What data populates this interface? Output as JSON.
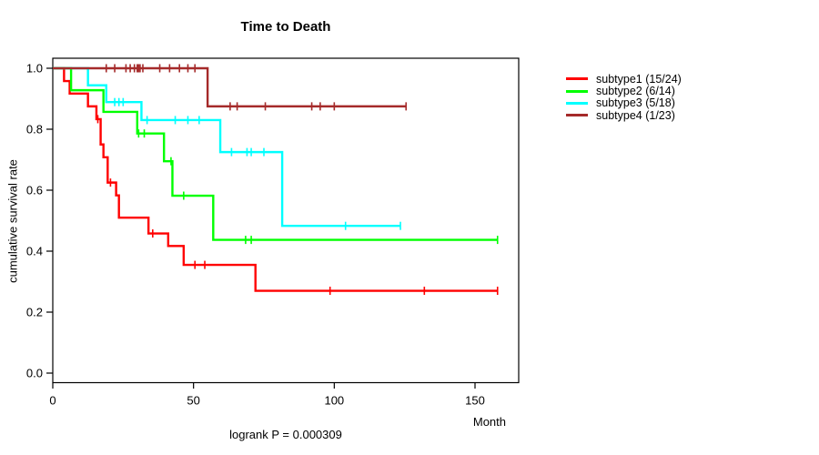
{
  "title": "Time to Death",
  "caption": "logrank P = 0.000309",
  "chart_data": {
    "type": "line",
    "subtype": "kaplan-meier-step-curves",
    "title": "Time to Death",
    "xlabel": "Month",
    "ylabel": "cumulative survival rate",
    "xlim": [
      0,
      165
    ],
    "ylim": [
      0.0,
      1.0
    ],
    "x_ticks": [
      0,
      50,
      100,
      150
    ],
    "y_ticks": [
      0.0,
      0.2,
      0.4,
      0.6,
      0.8,
      1.0
    ],
    "grid": false,
    "legend_position": "right",
    "caption": "logrank P = 0.000309",
    "series": [
      {
        "name": "subtype1",
        "label": "subtype1 (15/24)",
        "color": "#FF0000",
        "steps": [
          [
            0,
            1.0
          ],
          [
            4,
            0.958
          ],
          [
            6,
            0.917
          ],
          [
            12.5,
            0.875
          ],
          [
            15.5,
            0.833
          ],
          [
            17,
            0.75
          ],
          [
            18,
            0.708
          ],
          [
            19.5,
            0.625
          ],
          [
            22.5,
            0.583
          ],
          [
            23.5,
            0.51
          ],
          [
            34,
            0.458
          ],
          [
            41,
            0.417
          ],
          [
            46.5,
            0.355
          ],
          [
            72,
            0.27
          ],
          [
            158,
            0.27
          ]
        ],
        "censors": [
          [
            16,
            0.833
          ],
          [
            20.5,
            0.625
          ],
          [
            35.5,
            0.458
          ],
          [
            50.5,
            0.355
          ],
          [
            54,
            0.355
          ],
          [
            98.5,
            0.27
          ],
          [
            132,
            0.27
          ],
          [
            158,
            0.27
          ]
        ]
      },
      {
        "name": "subtype2",
        "label": "subtype2 (6/14)",
        "color": "#00FF00",
        "steps": [
          [
            0,
            1.0
          ],
          [
            6.5,
            0.928
          ],
          [
            18,
            0.857
          ],
          [
            30,
            0.786
          ],
          [
            39.5,
            0.695
          ],
          [
            42.5,
            0.582
          ],
          [
            57,
            0.437
          ],
          [
            158,
            0.437
          ]
        ],
        "censors": [
          [
            30.5,
            0.786
          ],
          [
            32.5,
            0.786
          ],
          [
            42,
            0.695
          ],
          [
            46.5,
            0.582
          ],
          [
            68.5,
            0.437
          ],
          [
            70.5,
            0.437
          ],
          [
            158,
            0.437
          ]
        ]
      },
      {
        "name": "subtype3",
        "label": "subtype3 (5/18)",
        "color": "#00FFFF",
        "steps": [
          [
            0,
            1.0
          ],
          [
            12.5,
            0.944
          ],
          [
            19,
            0.889
          ],
          [
            31.5,
            0.83
          ],
          [
            59.5,
            0.725
          ],
          [
            81.5,
            0.483
          ],
          [
            123.5,
            0.483
          ]
        ],
        "censors": [
          [
            22,
            0.889
          ],
          [
            23.5,
            0.889
          ],
          [
            25,
            0.889
          ],
          [
            33.5,
            0.83
          ],
          [
            43.5,
            0.83
          ],
          [
            48,
            0.83
          ],
          [
            52,
            0.83
          ],
          [
            63.5,
            0.725
          ],
          [
            69,
            0.725
          ],
          [
            70.5,
            0.725
          ],
          [
            75,
            0.725
          ],
          [
            104,
            0.483
          ],
          [
            123.5,
            0.483
          ]
        ]
      },
      {
        "name": "subtype4",
        "label": "subtype4 (1/23)",
        "color": "#A52A2A",
        "steps": [
          [
            0,
            1.0
          ],
          [
            55,
            0.875
          ],
          [
            125.5,
            0.875
          ]
        ],
        "censors": [
          [
            19,
            1.0
          ],
          [
            22,
            1.0
          ],
          [
            26,
            1.0
          ],
          [
            27.5,
            1.0
          ],
          [
            29,
            1.0
          ],
          [
            30,
            1.0
          ],
          [
            30.5,
            1.0
          ],
          [
            31,
            1.0
          ],
          [
            32,
            1.0
          ],
          [
            38,
            1.0
          ],
          [
            41.5,
            1.0
          ],
          [
            45,
            1.0
          ],
          [
            48,
            1.0
          ],
          [
            50.5,
            1.0
          ],
          [
            63,
            0.875
          ],
          [
            65.5,
            0.875
          ],
          [
            75.5,
            0.875
          ],
          [
            92,
            0.875
          ],
          [
            95,
            0.875
          ],
          [
            100,
            0.875
          ],
          [
            125.5,
            0.875
          ]
        ]
      }
    ]
  }
}
